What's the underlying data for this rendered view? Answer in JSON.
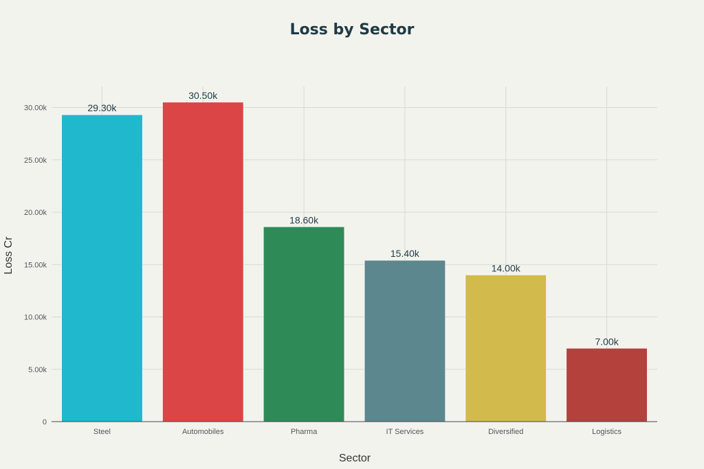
{
  "chart_data": {
    "type": "bar",
    "title": "Loss by Sector",
    "xlabel": "Sector",
    "ylabel": "Loss Cr",
    "categories": [
      "Steel",
      "Automobiles",
      "Pharma",
      "IT Services",
      "Diversified",
      "Logistics"
    ],
    "values": [
      29300,
      30500,
      18600,
      15400,
      14000,
      7000
    ],
    "data_labels": [
      "29.30k",
      "30.50k",
      "18.60k",
      "15.40k",
      "14.00k",
      "7.00k"
    ],
    "colors": [
      "#1fb8cd",
      "#db4545",
      "#2e8b57",
      "#5d878f",
      "#d2ba4c",
      "#b4413c"
    ],
    "ylim": [
      0,
      32000
    ],
    "yticks": [
      0,
      5000,
      10000,
      15000,
      20000,
      25000,
      30000
    ],
    "ytick_labels": [
      "0",
      "5.00k",
      "10.00k",
      "15.00k",
      "20.00k",
      "25.00k",
      "30.00k"
    ],
    "grid": true,
    "legend": "none"
  }
}
